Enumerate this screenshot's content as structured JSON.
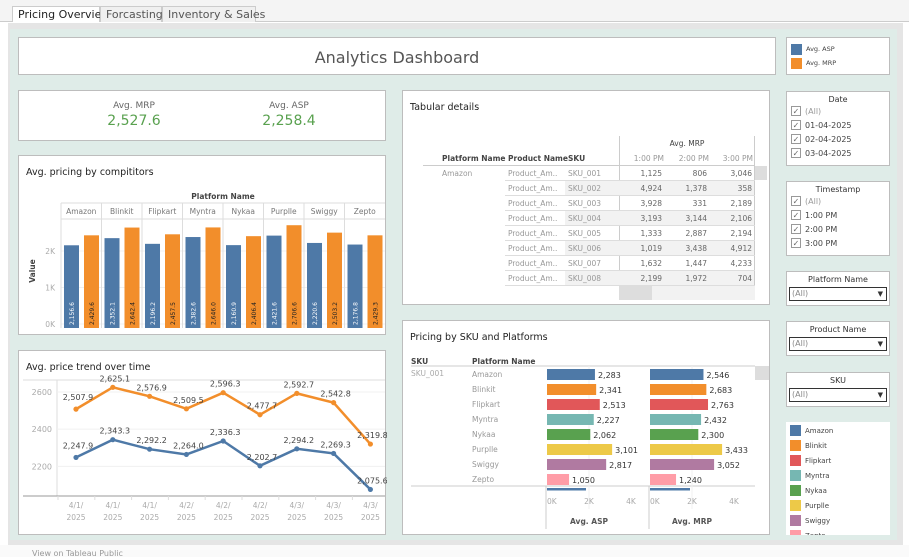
{
  "tabs": [
    "Pricing Overview",
    "Forcasting",
    "Inventory & Sales"
  ],
  "title": "Analytics Dashboard",
  "kpis": [
    {
      "label": "Avg. MRP",
      "value": "2,527.6"
    },
    {
      "label": "Avg. ASP",
      "value": "2,258.4"
    }
  ],
  "colors": {
    "asp": "#4e79a7",
    "mrp": "#f28e2b",
    "kpi": "#59a14f"
  },
  "legend": [
    {
      "label": "Avg. ASP",
      "color": "#4e79a7"
    },
    {
      "label": "Avg. MRP",
      "color": "#f28e2b"
    }
  ],
  "filters": {
    "date": {
      "title": "Date",
      "options": [
        "(All)",
        "01-04-2025",
        "02-04-2025",
        "03-04-2025"
      ]
    },
    "timestamp": {
      "title": "Timestamp",
      "options": [
        "(All)",
        "1:00 PM",
        "2:00 PM",
        "3:00 PM"
      ]
    },
    "platform": {
      "title": "Platform Name",
      "value": "(All)"
    },
    "product": {
      "title": "Product Name",
      "value": "(All)"
    },
    "sku": {
      "title": "SKU",
      "value": "(All)"
    }
  },
  "platform_legend": [
    {
      "label": "Amazon",
      "color": "#4e79a7"
    },
    {
      "label": "Blinkit",
      "color": "#f28e2b"
    },
    {
      "label": "Flipkart",
      "color": "#e15759"
    },
    {
      "label": "Myntra",
      "color": "#76b7b2"
    },
    {
      "label": "Nykaa",
      "color": "#59a14f"
    },
    {
      "label": "Purplle",
      "color": "#edc948"
    },
    {
      "label": "Swiggy",
      "color": "#b07aa1"
    },
    {
      "label": "Zepto",
      "color": "#ff9da7"
    }
  ],
  "table": {
    "title": "Tabular details",
    "measure": "Avg. MRP",
    "headers": [
      "Platform Name",
      "Product Name",
      "SKU"
    ],
    "times": [
      "1:00 PM",
      "2:00 PM",
      "3:00 PM"
    ],
    "platform": "Amazon",
    "rows": [
      {
        "product": "Product_Am..",
        "sku": "SKU_001",
        "v": [
          "1,125",
          "806",
          "3,046"
        ]
      },
      {
        "product": "Product_Am..",
        "sku": "SKU_002",
        "v": [
          "4,924",
          "1,378",
          "358"
        ]
      },
      {
        "product": "Product_Am..",
        "sku": "SKU_003",
        "v": [
          "3,928",
          "331",
          "2,189"
        ]
      },
      {
        "product": "Product_Am..",
        "sku": "SKU_004",
        "v": [
          "3,193",
          "3,144",
          "2,106"
        ]
      },
      {
        "product": "Product_Am..",
        "sku": "SKU_005",
        "v": [
          "1,333",
          "2,887",
          "2,194"
        ]
      },
      {
        "product": "Product_Am..",
        "sku": "SKU_006",
        "v": [
          "1,019",
          "3,438",
          "4,912"
        ]
      },
      {
        "product": "Product_Am..",
        "sku": "SKU_007",
        "v": [
          "1,632",
          "1,447",
          "4,233"
        ]
      },
      {
        "product": "Product_Am..",
        "sku": "SKU_008",
        "v": [
          "2,199",
          "1,972",
          "704"
        ]
      }
    ]
  },
  "chart_data": [
    {
      "type": "bar",
      "title": "Avg. pricing by compititors",
      "header": "Platform Name",
      "ylabel": "Value",
      "yticks": [
        "0K",
        "1K",
        "2K"
      ],
      "ylim": [
        0,
        3000
      ],
      "categories": [
        "Amazon",
        "Blinkit",
        "Flipkart",
        "Myntra",
        "Nykaa",
        "Purplle",
        "Swiggy",
        "Zepto"
      ],
      "series": [
        {
          "name": "Avg. ASP",
          "values": [
            2156.6,
            2352.1,
            2196.2,
            2382.6,
            2160.9,
            2421.6,
            2220.6,
            2176.8
          ],
          "labels": [
            "2,156.6",
            "2,352.1",
            "2,196.2",
            "2,382.6",
            "2,160.9",
            "2,421.6",
            "2,220.6",
            "2,176.8"
          ]
        },
        {
          "name": "Avg. MRP",
          "values": [
            2429.6,
            2642.4,
            2457.5,
            2646.0,
            2406.4,
            2706.6,
            2503.2,
            2429.3
          ],
          "labels": [
            "2,429.6",
            "2,642.4",
            "2,457.5",
            "2,646.0",
            "2,406.4",
            "2,706.6",
            "2,503.2",
            "2,429.3"
          ]
        }
      ]
    },
    {
      "type": "line",
      "title": "Avg. price trend over time",
      "yticks": [
        "2200",
        "2400",
        "2600"
      ],
      "ylim": [
        2040,
        2650
      ],
      "x": [
        "4/1/ 2025 ..",
        "4/1/ 2025 ..",
        "4/1/ 2025 ..",
        "4/2/ 2025 ..",
        "4/2/ 2025 ..",
        "4/2/ 2025 ..",
        "4/3/ 2025 ..",
        "4/3/ 2025 ..",
        "4/3/ 2025 .."
      ],
      "series": [
        {
          "name": "Avg. MRP",
          "values": [
            2507.9,
            2625.1,
            2576.9,
            2509.5,
            2596.3,
            2477.7,
            2592.7,
            2542.8,
            2319.8
          ],
          "labels": [
            "2,507.9",
            "2,625.1",
            "2,576.9",
            "2,509.5",
            "2,596.3",
            "2,477.7",
            "2,592.7",
            "2,542.8",
            "2,319.8"
          ]
        },
        {
          "name": "Avg. ASP",
          "values": [
            2247.9,
            2343.3,
            2292.2,
            2264.0,
            2336.3,
            2202.7,
            2294.2,
            2269.3,
            2075.6
          ],
          "labels": [
            "2,247.9",
            "2,343.3",
            "2,292.2",
            "2,264.0",
            "2,336.3",
            "2,202.7",
            "2,294.2",
            "2,269.3",
            "2,075.6"
          ]
        }
      ]
    },
    {
      "type": "bar",
      "title": "Pricing by SKU and Platforms",
      "row_headers": [
        "SKU",
        "Platform Name"
      ],
      "sku": "SKU_001",
      "categories": [
        "Amazon",
        "Blinkit",
        "Flipkart",
        "Myntra",
        "Nykaa",
        "Purplle",
        "Swiggy",
        "Zepto"
      ],
      "xticks": [
        "0K",
        "2K",
        "4K"
      ],
      "xlim": [
        0,
        4000
      ],
      "series": [
        {
          "name": "Avg. ASP",
          "values": [
            2283,
            2341,
            2513,
            2227,
            2062,
            3101,
            2817,
            1050
          ],
          "labels": [
            "2,283",
            "2,341",
            "2,513",
            "2,227",
            "2,062",
            "3,101",
            "2,817",
            "1,050"
          ]
        },
        {
          "name": "Avg. MRP",
          "values": [
            2546,
            2683,
            2763,
            2432,
            2300,
            3433,
            3052,
            1240
          ],
          "labels": [
            "2,546",
            "2,683",
            "2,763",
            "2,432",
            "2,300",
            "3,433",
            "3,052",
            "1,240"
          ]
        }
      ]
    }
  ],
  "status": "View on Tableau Public"
}
